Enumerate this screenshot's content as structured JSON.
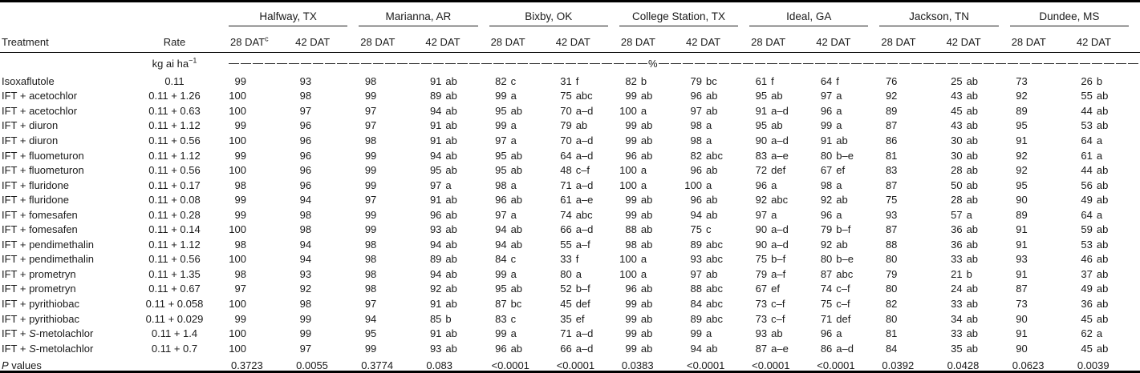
{
  "table": {
    "col1_header": "Treatment",
    "col2_header": "Rate",
    "unit_label": "kg ai ha⁻¹",
    "percent_label": "%",
    "dat_headers": [
      "28 DAT",
      "42 DAT"
    ],
    "dat_footnote_marker": "c",
    "locations": [
      "Halfway, TX",
      "Marianna, AR",
      "Bixby, OK",
      "College Station, TX",
      "Ideal, GA",
      "Jackson, TN",
      "Dundee, MS"
    ],
    "rows": [
      {
        "treatment": "Isoxaflutole",
        "rate": "0.11",
        "italic_s": false,
        "values": [
          "99",
          "93",
          "98",
          "91 ab",
          "82 c",
          "31 f",
          "82 b",
          "79 bc",
          "61 f",
          "64 f",
          "76",
          "25 ab",
          "73",
          "26 b"
        ]
      },
      {
        "treatment": "IFT + acetochlor",
        "rate": "0.11 + 1.26",
        "italic_s": false,
        "values": [
          "100",
          "98",
          "99",
          "89 ab",
          "99 a",
          "75 abc",
          "99 ab",
          "96 ab",
          "95 ab",
          "97 a",
          "92",
          "43 ab",
          "92",
          "55 ab"
        ]
      },
      {
        "treatment": "IFT + acetochlor",
        "rate": "0.11 + 0.63",
        "italic_s": false,
        "values": [
          "100",
          "97",
          "97",
          "94 ab",
          "95 ab",
          "70 a–d",
          "100 a",
          "97 ab",
          "91 a–d",
          "96 a",
          "89",
          "45 ab",
          "89",
          "44 ab"
        ]
      },
      {
        "treatment": "IFT + diuron",
        "rate": "0.11 + 1.12",
        "italic_s": false,
        "values": [
          "99",
          "96",
          "97",
          "91 ab",
          "99 a",
          "79 ab",
          "99 ab",
          "98 a",
          "95 ab",
          "99 a",
          "87",
          "43 ab",
          "95",
          "53 ab"
        ]
      },
      {
        "treatment": "IFT + diuron",
        "rate": "0.11 + 0.56",
        "italic_s": false,
        "values": [
          "100",
          "96",
          "98",
          "91 ab",
          "97 a",
          "70 a–d",
          "99 ab",
          "98 a",
          "90 a–d",
          "91 ab",
          "86",
          "30 ab",
          "91",
          "64 a"
        ]
      },
      {
        "treatment": "IFT + fluometuron",
        "rate": "0.11 + 1.12",
        "italic_s": false,
        "values": [
          "99",
          "96",
          "99",
          "94 ab",
          "95 ab",
          "64 a–d",
          "96 ab",
          "82 abc",
          "83 a–e",
          "80 b–e",
          "81",
          "30 ab",
          "92",
          "61 a"
        ]
      },
      {
        "treatment": "IFT + fluometuron",
        "rate": "0.11 + 0.56",
        "italic_s": false,
        "values": [
          "100",
          "96",
          "99",
          "95 ab",
          "95 ab",
          "48 c–f",
          "100 a",
          "96 ab",
          "72 def",
          "67 ef",
          "83",
          "28 ab",
          "92",
          "44 ab"
        ]
      },
      {
        "treatment": "IFT + fluridone",
        "rate": "0.11 + 0.17",
        "italic_s": false,
        "values": [
          "98",
          "96",
          "99",
          "97 a",
          "98 a",
          "71 a–d",
          "100 a",
          "100 a",
          "96 a",
          "98 a",
          "87",
          "50 ab",
          "95",
          "56 ab"
        ]
      },
      {
        "treatment": "IFT + fluridone",
        "rate": "0.11 + 0.08",
        "italic_s": false,
        "values": [
          "99",
          "94",
          "97",
          "91 ab",
          "96 ab",
          "61 a–e",
          "99 ab",
          "96 ab",
          "92 abc",
          "92 ab",
          "75",
          "28 ab",
          "90",
          "49 ab"
        ]
      },
      {
        "treatment": "IFT + fomesafen",
        "rate": "0.11 + 0.28",
        "italic_s": false,
        "values": [
          "99",
          "98",
          "99",
          "96 ab",
          "97 a",
          "74 abc",
          "99 ab",
          "94 ab",
          "97 a",
          "96 a",
          "93",
          "57 a",
          "89",
          "64 a"
        ]
      },
      {
        "treatment": "IFT + fomesafen",
        "rate": "0.11 + 0.14",
        "italic_s": false,
        "values": [
          "100",
          "98",
          "99",
          "93 ab",
          "94 ab",
          "66 a–d",
          "88 ab",
          "75 c",
          "90 a–d",
          "79 b–f",
          "87",
          "36 ab",
          "91",
          "59 ab"
        ]
      },
      {
        "treatment": "IFT + pendimethalin",
        "rate": "0.11 + 1.12",
        "italic_s": false,
        "values": [
          "98",
          "94",
          "98",
          "94 ab",
          "94 ab",
          "55 a–f",
          "98 ab",
          "89 abc",
          "90 a–d",
          "92 ab",
          "88",
          "36 ab",
          "91",
          "53 ab"
        ]
      },
      {
        "treatment": "IFT + pendimethalin",
        "rate": "0.11 + 0.56",
        "italic_s": false,
        "values": [
          "100",
          "94",
          "98",
          "89 ab",
          "84 c",
          "33 f",
          "100 a",
          "93 abc",
          "75 b–f",
          "80 b–e",
          "80",
          "33 ab",
          "93",
          "46 ab"
        ]
      },
      {
        "treatment": "IFT + prometryn",
        "rate": "0.11 + 1.35",
        "italic_s": false,
        "values": [
          "98",
          "93",
          "98",
          "94 ab",
          "99 a",
          "80 a",
          "100 a",
          "97 ab",
          "79 a–f",
          "87 abc",
          "79",
          "21 b",
          "91",
          "37 ab"
        ]
      },
      {
        "treatment": "IFT + prometryn",
        "rate": "0.11 + 0.67",
        "italic_s": false,
        "values": [
          "97",
          "92",
          "98",
          "92 ab",
          "95 ab",
          "52 b–f",
          "96 ab",
          "88 abc",
          "67 ef",
          "74 c–f",
          "80",
          "24 ab",
          "87",
          "49 ab"
        ]
      },
      {
        "treatment": "IFT + pyrithiobac",
        "rate": "0.11 + 0.058",
        "italic_s": false,
        "values": [
          "100",
          "98",
          "97",
          "91 ab",
          "87 bc",
          "45 def",
          "99 ab",
          "84 abc",
          "73 c–f",
          "75 c–f",
          "82",
          "33 ab",
          "73",
          "36 ab"
        ]
      },
      {
        "treatment": "IFT + pyrithiobac",
        "rate": "0.11 + 0.029",
        "italic_s": false,
        "values": [
          "99",
          "99",
          "94",
          "85 b",
          "83 c",
          "35 ef",
          "99 ab",
          "89 abc",
          "73 c–f",
          "71 def",
          "80",
          "34 ab",
          "90",
          "45 ab"
        ]
      },
      {
        "treatment": "IFT + S-metolachlor",
        "rate": "0.11 + 1.4",
        "italic_s": true,
        "values": [
          "100",
          "99",
          "95",
          "91 ab",
          "99 a",
          "71 a–d",
          "99 ab",
          "99 a",
          "93 ab",
          "96 a",
          "81",
          "33 ab",
          "91",
          "62 a"
        ]
      },
      {
        "treatment": "IFT + S-metolachlor",
        "rate": "0.11 + 0.7",
        "italic_s": true,
        "values": [
          "100",
          "97",
          "99",
          "93 ab",
          "96 ab",
          "66 a–d",
          "99 ab",
          "94 ab",
          "87 a–e",
          "86 a–d",
          "84",
          "35 ab",
          "90",
          "45 ab"
        ]
      }
    ],
    "p_row": {
      "label": "P values",
      "italic_first": true,
      "values": [
        "0.3723",
        "0.0055",
        "0.3774",
        "0.083",
        "<0.0001",
        "<0.0001",
        "0.0383",
        "<0.0001",
        "<0.0001",
        "<0.0001",
        "0.0392",
        "0.0428",
        "0.0623",
        "0.0039"
      ]
    }
  },
  "colors": {
    "text": "#1a1a1a",
    "rule": "#000000",
    "background": "#ffffff"
  }
}
